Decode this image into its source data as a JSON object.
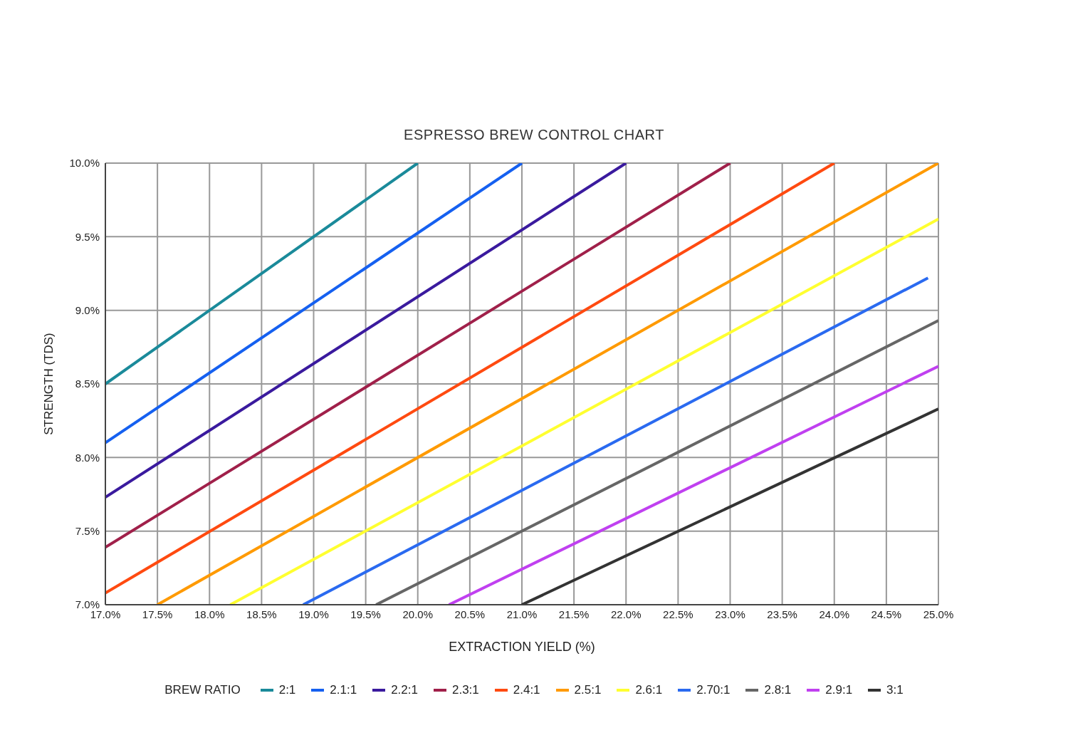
{
  "chart_data": {
    "type": "line",
    "title": "ESPRESSO BREW CONTROL CHART",
    "xlabel": "EXTRACTION YIELD (%)",
    "ylabel": "STRENGTH (TDS)",
    "legend_title": "BREW RATIO",
    "legend": "bottom",
    "grid": true,
    "marker": "none",
    "line_style": "solid",
    "xlim": [
      17,
      25
    ],
    "ylim": [
      7,
      10
    ],
    "xticks": [
      {
        "value": 17,
        "label": "17.0%"
      },
      {
        "value": 17.5,
        "label": "17.5%"
      },
      {
        "value": 18,
        "label": "18.0%"
      },
      {
        "value": 18.5,
        "label": "18.5%"
      },
      {
        "value": 19,
        "label": "19.0%"
      },
      {
        "value": 19.5,
        "label": "19.5%"
      },
      {
        "value": 20,
        "label": "20.0%"
      },
      {
        "value": 20.5,
        "label": "20.5%"
      },
      {
        "value": 21,
        "label": "21.0%"
      },
      {
        "value": 21.5,
        "label": "21.5%"
      },
      {
        "value": 22,
        "label": "22.0%"
      },
      {
        "value": 22.5,
        "label": "22.5%"
      },
      {
        "value": 23,
        "label": "23.0%"
      },
      {
        "value": 23.5,
        "label": "23.5%"
      },
      {
        "value": 24,
        "label": "24.0%"
      },
      {
        "value": 24.5,
        "label": "24.5%"
      },
      {
        "value": 25,
        "label": "25.0%"
      }
    ],
    "yticks": [
      {
        "value": 7,
        "label": "7.0%"
      },
      {
        "value": 7.5,
        "label": "7.5%"
      },
      {
        "value": 8,
        "label": "8.0%"
      },
      {
        "value": 8.5,
        "label": "8.5%"
      },
      {
        "value": 9,
        "label": "9.0%"
      },
      {
        "value": 9.5,
        "label": "9.5%"
      },
      {
        "value": 10,
        "label": "10.0%"
      }
    ],
    "series": [
      {
        "name": "2:1",
        "color": "#1a8a9a",
        "x": [
          17,
          20
        ],
        "values": [
          8.5,
          10
        ]
      },
      {
        "name": "2.1:1",
        "color": "#1560f0",
        "x": [
          17,
          21
        ],
        "values": [
          8.1,
          10
        ]
      },
      {
        "name": "2.2:1",
        "color": "#3a1a9e",
        "x": [
          17,
          22
        ],
        "values": [
          7.73,
          10
        ]
      },
      {
        "name": "2.3:1",
        "color": "#a0204a",
        "x": [
          17,
          23
        ],
        "values": [
          7.39,
          10
        ]
      },
      {
        "name": "2.4:1",
        "color": "#ff4a10",
        "x": [
          17,
          24
        ],
        "values": [
          7.08,
          10
        ]
      },
      {
        "name": "2.5:1",
        "color": "#ff9a00",
        "x": [
          17.5,
          25
        ],
        "values": [
          7,
          10
        ]
      },
      {
        "name": "2.6:1",
        "color": "#ffff30",
        "x": [
          18.2,
          25
        ],
        "values": [
          7,
          9.62
        ]
      },
      {
        "name": "2.70:1",
        "color": "#2a6af0",
        "x": [
          18.9,
          24.9
        ],
        "values": [
          7,
          9.22
        ]
      },
      {
        "name": "2.8:1",
        "color": "#666666",
        "x": [
          19.6,
          25
        ],
        "values": [
          7,
          8.93
        ]
      },
      {
        "name": "2.9:1",
        "color": "#c040f0",
        "x": [
          20.3,
          25
        ],
        "values": [
          7,
          8.62
        ]
      },
      {
        "name": "3:1",
        "color": "#333333",
        "x": [
          21,
          25
        ],
        "values": [
          7,
          8.33
        ]
      }
    ]
  }
}
